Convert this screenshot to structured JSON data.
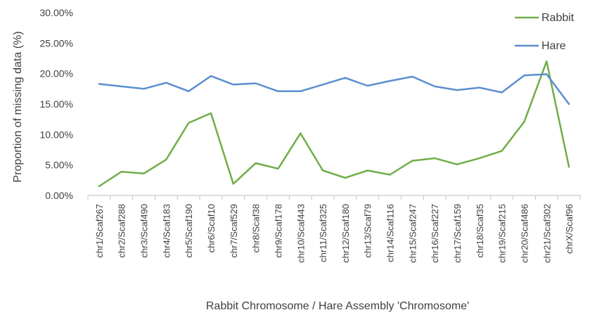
{
  "chart_data": {
    "type": "line",
    "title": "",
    "xlabel": "Rabbit Chromosome / Hare Assembly 'Chromosome'",
    "ylabel": "Proportion of missing data (%)",
    "ylim": [
      0,
      0.3
    ],
    "yticks": [
      "0.00%",
      "5.00%",
      "10.00%",
      "15.00%",
      "20.00%",
      "25.00%",
      "30.00%"
    ],
    "grid": false,
    "legend_position": "top-right",
    "categories": [
      "chr1/Scaf267",
      "chr2/Scaf288",
      "chr3/Scaf490",
      "chr4/Scaf183",
      "chr5/Scaf190",
      "chr6/Scaf10",
      "chr7/Scaf529",
      "chr8/Scaf38",
      "chr9/Scaf178",
      "chr10/Scaf443",
      "chr11/Scaf325",
      "chr12/Scaf180",
      "chr13/Scaf79",
      "chr14/Scaf116",
      "chr15/Scaf247",
      "chr16/Scaf227",
      "chr17/Scaf159",
      "chr18/Scaf35",
      "chr19/Scaf215",
      "chr20/Scaf486",
      "chr21/Scaf302",
      "chrX/Scaf96"
    ],
    "series": [
      {
        "name": "Rabbit",
        "color": "#70ad47",
        "values": [
          0.015,
          0.039,
          0.036,
          0.059,
          0.119,
          0.135,
          0.019,
          0.053,
          0.044,
          0.102,
          0.041,
          0.029,
          0.041,
          0.034,
          0.057,
          0.061,
          0.051,
          0.061,
          0.073,
          0.121,
          0.22,
          0.047
        ]
      },
      {
        "name": "Hare",
        "color": "#5b8ed0",
        "values": [
          0.183,
          0.179,
          0.175,
          0.185,
          0.171,
          0.196,
          0.182,
          0.184,
          0.171,
          0.171,
          0.182,
          0.193,
          0.18,
          0.188,
          0.195,
          0.179,
          0.173,
          0.177,
          0.169,
          0.197,
          0.199,
          0.15
        ]
      }
    ]
  }
}
